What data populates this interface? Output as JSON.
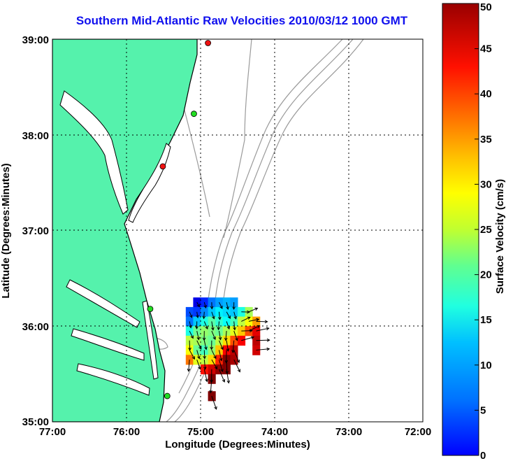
{
  "title": "Southern Mid-Atlantic Raw Velocities 2010/03/12 1000 GMT",
  "colors": {
    "land": "#55f2ac",
    "land_edge": "#000000",
    "bathymetry": "#9a9a9a",
    "grid": "#000000",
    "title": "#1010ee",
    "station_green": "#22dd22",
    "station_red": "#ee1111"
  },
  "chart_data": [
    {
      "type": "scatter",
      "subtype": "velocity-vector map",
      "title": "Southern Mid-Atlantic Raw Velocities 2010/03/12 1000 GMT",
      "xlabel": "Longitude (Degrees:Minutes)",
      "ylabel": "Latitude (Degrees:Minutes)",
      "xlim": [
        -77,
        -72
      ],
      "ylim": [
        35,
        39
      ],
      "x_ticks": [
        "77:00",
        "76:00",
        "75:00",
        "74:00",
        "73:00",
        "72:00"
      ],
      "y_ticks": [
        "39:00",
        "38:00",
        "37:00",
        "36:00",
        "35:00"
      ],
      "grid": true,
      "stations": [
        {
          "lon": -74.9,
          "lat": 38.96,
          "color": "red"
        },
        {
          "lon": -75.09,
          "lat": 38.22,
          "color": "green"
        },
        {
          "lon": -75.51,
          "lat": 37.67,
          "color": "red"
        },
        {
          "lon": -75.68,
          "lat": 36.18,
          "color": "green"
        },
        {
          "lon": -75.45,
          "lat": 35.27,
          "color": "green"
        }
      ],
      "velocity_field": [
        {
          "lon": -75.05,
          "lat": 36.25,
          "speed": 5
        },
        {
          "lon": -74.95,
          "lat": 36.25,
          "speed": 8
        },
        {
          "lon": -74.85,
          "lat": 36.25,
          "speed": 12
        },
        {
          "lon": -74.75,
          "lat": 36.25,
          "speed": 14
        },
        {
          "lon": -74.65,
          "lat": 36.25,
          "speed": 15
        },
        {
          "lon": -74.55,
          "lat": 36.25,
          "speed": 14
        },
        {
          "lon": -75.15,
          "lat": 36.15,
          "speed": 10
        },
        {
          "lon": -75.05,
          "lat": 36.15,
          "speed": 9
        },
        {
          "lon": -74.95,
          "lat": 36.15,
          "speed": 13
        },
        {
          "lon": -74.85,
          "lat": 36.15,
          "speed": 16
        },
        {
          "lon": -74.75,
          "lat": 36.15,
          "speed": 18
        },
        {
          "lon": -74.65,
          "lat": 36.15,
          "speed": 17
        },
        {
          "lon": -74.55,
          "lat": 36.15,
          "speed": 16
        },
        {
          "lon": -74.45,
          "lat": 36.15,
          "speed": 20
        },
        {
          "lon": -74.35,
          "lat": 36.15,
          "speed": 27
        },
        {
          "lon": -75.15,
          "lat": 36.05,
          "speed": 12
        },
        {
          "lon": -75.05,
          "lat": 36.05,
          "speed": 16
        },
        {
          "lon": -74.95,
          "lat": 36.05,
          "speed": 20
        },
        {
          "lon": -74.85,
          "lat": 36.05,
          "speed": 23
        },
        {
          "lon": -74.75,
          "lat": 36.05,
          "speed": 21
        },
        {
          "lon": -74.65,
          "lat": 36.05,
          "speed": 19
        },
        {
          "lon": -74.55,
          "lat": 36.05,
          "speed": 22
        },
        {
          "lon": -74.45,
          "lat": 36.05,
          "speed": 28
        },
        {
          "lon": -74.35,
          "lat": 36.05,
          "speed": 31
        },
        {
          "lon": -74.25,
          "lat": 36.05,
          "speed": 36
        },
        {
          "lon": -75.15,
          "lat": 35.95,
          "speed": 20
        },
        {
          "lon": -75.05,
          "lat": 35.95,
          "speed": 24
        },
        {
          "lon": -74.95,
          "lat": 35.95,
          "speed": 26
        },
        {
          "lon": -74.85,
          "lat": 35.95,
          "speed": 25
        },
        {
          "lon": -74.75,
          "lat": 35.95,
          "speed": 24
        },
        {
          "lon": -74.65,
          "lat": 35.95,
          "speed": 27
        },
        {
          "lon": -74.55,
          "lat": 35.95,
          "speed": 30
        },
        {
          "lon": -74.45,
          "lat": 35.95,
          "speed": 34
        },
        {
          "lon": -74.35,
          "lat": 35.95,
          "speed": 40
        },
        {
          "lon": -74.25,
          "lat": 35.95,
          "speed": 45
        },
        {
          "lon": -75.15,
          "lat": 35.85,
          "speed": 28
        },
        {
          "lon": -75.05,
          "lat": 35.85,
          "speed": 27
        },
        {
          "lon": -74.95,
          "lat": 35.85,
          "speed": 25
        },
        {
          "lon": -74.85,
          "lat": 35.85,
          "speed": 24
        },
        {
          "lon": -74.75,
          "lat": 35.85,
          "speed": 28
        },
        {
          "lon": -74.65,
          "lat": 35.85,
          "speed": 33
        },
        {
          "lon": -74.55,
          "lat": 35.85,
          "speed": 40
        },
        {
          "lon": -74.45,
          "lat": 35.85,
          "speed": 44
        },
        {
          "lon": -74.25,
          "lat": 35.85,
          "speed": 47
        },
        {
          "lon": -75.15,
          "lat": 35.75,
          "speed": 31
        },
        {
          "lon": -75.05,
          "lat": 35.75,
          "speed": 24
        },
        {
          "lon": -74.95,
          "lat": 35.75,
          "speed": 22
        },
        {
          "lon": -74.85,
          "lat": 35.75,
          "speed": 26
        },
        {
          "lon": -74.75,
          "lat": 35.75,
          "speed": 34
        },
        {
          "lon": -74.65,
          "lat": 35.75,
          "speed": 44
        },
        {
          "lon": -74.55,
          "lat": 35.75,
          "speed": 47
        },
        {
          "lon": -74.25,
          "lat": 35.75,
          "speed": 46
        },
        {
          "lon": -75.15,
          "lat": 35.65,
          "speed": 38
        },
        {
          "lon": -75.05,
          "lat": 35.65,
          "speed": 30
        },
        {
          "lon": -74.95,
          "lat": 35.65,
          "speed": 28
        },
        {
          "lon": -74.85,
          "lat": 35.65,
          "speed": 33
        },
        {
          "lon": -74.75,
          "lat": 35.65,
          "speed": 42
        },
        {
          "lon": -74.65,
          "lat": 35.65,
          "speed": 50
        },
        {
          "lon": -74.55,
          "lat": 35.65,
          "speed": 48
        },
        {
          "lon": -74.95,
          "lat": 35.55,
          "speed": 43
        },
        {
          "lon": -74.85,
          "lat": 35.55,
          "speed": 46
        },
        {
          "lon": -74.75,
          "lat": 35.55,
          "speed": 49
        },
        {
          "lon": -74.65,
          "lat": 35.55,
          "speed": 50
        },
        {
          "lon": -74.85,
          "lat": 35.45,
          "speed": 50
        },
        {
          "lon": -74.85,
          "lat": 35.27,
          "speed": 50
        }
      ],
      "colorbar": {
        "label": "Surface Velocity (cm/s)",
        "min": 0,
        "max": 50,
        "ticks": [
          "0",
          "5",
          "10",
          "15",
          "20",
          "25",
          "30",
          "35",
          "40",
          "45",
          "50"
        ]
      }
    }
  ]
}
